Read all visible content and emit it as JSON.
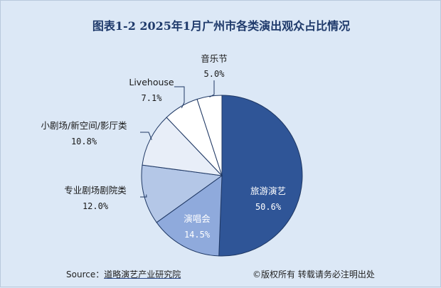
{
  "chart_data": {
    "type": "pie",
    "title": "图表1-2  2025年1月广州市各类演出观众占比情况",
    "slices": [
      {
        "label": "旅游演艺",
        "value": 50.6,
        "display": "50.6%",
        "color": "#2f5597"
      },
      {
        "label": "演唱会",
        "value": 14.5,
        "display": "14.5%",
        "color": "#8faadc"
      },
      {
        "label": "专业剧场剧院类",
        "value": 12.0,
        "display": "12.0%",
        "color": "#b4c7e7"
      },
      {
        "label": "小剧场/新空间/影厅类",
        "value": 10.8,
        "display": "10.8%",
        "color": "#e8eef8"
      },
      {
        "label": "Livehouse",
        "value": 7.1,
        "display": "7.1%",
        "color": "#ffffff"
      },
      {
        "label": "音乐节",
        "value": 5.0,
        "display": "5.0%",
        "color": "#ffffff"
      }
    ],
    "start_angle_deg": 0,
    "direction": "clockwise"
  },
  "footer": {
    "source_prefix": "Source：",
    "source_org": "道略演艺产业研究院",
    "copyright": "©版权所有  转载请务必注明出处"
  }
}
